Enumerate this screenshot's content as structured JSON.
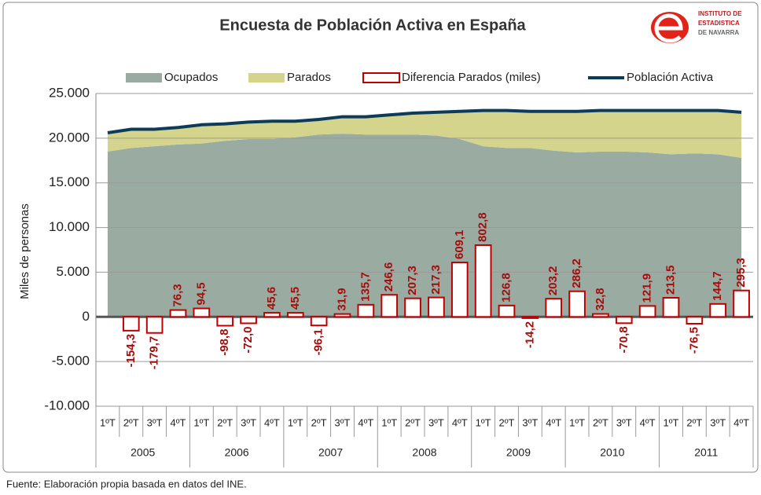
{
  "chart_data": {
    "type": "combo",
    "title": "Encuesta de Población Activa en España",
    "logo": [
      "INSTITUTO DE",
      "ESTADISTICA",
      "DE NAVARRA"
    ],
    "y_label": "Miles de personas",
    "source": "Fuente: Elaboración propia basada en datos del INE.",
    "categories": [
      "1ºT",
      "2ºT",
      "3ºT",
      "4ºT",
      "1ºT",
      "2ºT",
      "3ºT",
      "4ºT",
      "1ºT",
      "2ºT",
      "3ºT",
      "4ºT",
      "1ºT",
      "2ºT",
      "3ºT",
      "4ºT",
      "1ºT",
      "2ºT",
      "3ºT",
      "4ºT",
      "1ºT",
      "2ºT",
      "3ºT",
      "4ºT",
      "1ºT",
      "2ºT",
      "3ºT",
      "4ºT"
    ],
    "years": [
      "2005",
      "2006",
      "2007",
      "2008",
      "2009",
      "2010",
      "2011"
    ],
    "ylim": [
      -10000,
      25000
    ],
    "yticks": [
      {
        "value": -10000,
        "label": "-10.000"
      },
      {
        "value": -5000,
        "label": "-5.000"
      },
      0,
      {
        "value": 5000,
        "label": "5.000"
      },
      {
        "value": 10000,
        "label": "10.000"
      },
      {
        "value": 15000,
        "label": "15.000"
      },
      {
        "value": 20000,
        "label": "20.000"
      },
      {
        "value": 25000,
        "label": "25.000"
      }
    ],
    "y2lim": [
      -1000,
      2500
    ],
    "grid": true,
    "legend": "top",
    "series": [
      {
        "name": "Ocupados",
        "type": "area",
        "color": "#9aaba1",
        "values": [
          18500,
          18900,
          19100,
          19300,
          19400,
          19700,
          19900,
          19900,
          20100,
          20400,
          20500,
          20400,
          20400,
          20400,
          20300,
          19900,
          19100,
          18900,
          18900,
          18600,
          18400,
          18500,
          18500,
          18400,
          18200,
          18300,
          18200,
          17800
        ]
      },
      {
        "name": "Parados",
        "type": "area",
        "color": "#d5d48c",
        "values": [
          2100,
          2100,
          1900,
          1900,
          2100,
          1900,
          1900,
          2000,
          1800,
          1700,
          1900,
          2000,
          2200,
          2400,
          2600,
          3100,
          4000,
          4200,
          4100,
          4400,
          4600,
          4600,
          4600,
          4700,
          4900,
          4800,
          4900,
          5100
        ]
      },
      {
        "name": "Diferencia Parados (miles)",
        "type": "bar",
        "axis": "y2",
        "color": "#c00000",
        "values": [
          null,
          -154.3,
          -179.7,
          76.3,
          94.5,
          -98.8,
          -72.0,
          45.6,
          45.5,
          -96.1,
          31.9,
          135.7,
          246.6,
          207.3,
          217.3,
          609.1,
          802.8,
          126.8,
          -14.2,
          203.2,
          286.2,
          32.8,
          -70.8,
          121.9,
          213.5,
          -76.5,
          144.7,
          295.3
        ],
        "value_labels": [
          null,
          "-154,3",
          "-179,7",
          "76,3",
          "94,5",
          "-98,8",
          "-72,0",
          "45,6",
          "45,5",
          "-96,1",
          "31,9",
          "135,7",
          "246,6",
          "207,3",
          "217,3",
          "609,1",
          "802,8",
          "126,8",
          "-14,2",
          "203,2",
          "286,2",
          "32,8",
          "-70,8",
          "121,9",
          "213,5",
          "-76,5",
          "144,7",
          "295,3"
        ]
      },
      {
        "name": "Población Activa",
        "type": "line",
        "color": "#0c3b5b",
        "values": [
          20600,
          21000,
          21000,
          21200,
          21500,
          21600,
          21800,
          21900,
          21900,
          22100,
          22400,
          22400,
          22600,
          22800,
          22900,
          23000,
          23100,
          23100,
          23000,
          23000,
          23000,
          23100,
          23100,
          23100,
          23100,
          23100,
          23100,
          22900
        ]
      }
    ]
  }
}
